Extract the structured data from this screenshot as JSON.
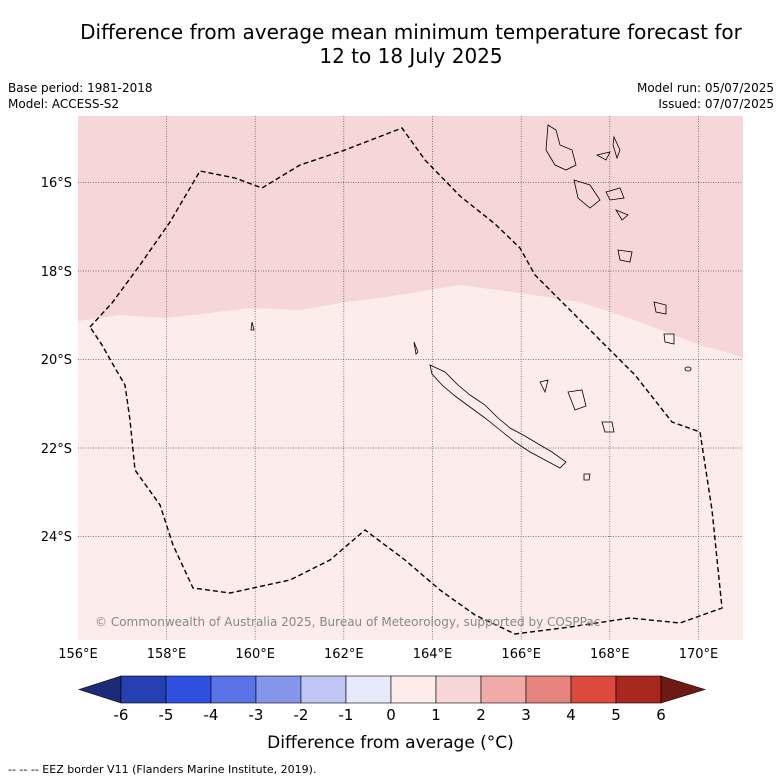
{
  "title_line1": "Difference from average mean minimum temperature forecast for",
  "title_line2": "12 to 18 July 2025",
  "base_period": "Base period: 1981-2018",
  "model": "Model: ACCESS-S2",
  "model_run": "Model run: 05/07/2025",
  "issued": "Issued: 07/07/2025",
  "copyright": "© Commonwealth of Australia 2025, Bureau of Meteorology, supported by COSPPac",
  "lat_labels": [
    "16°S",
    "18°S",
    "20°S",
    "22°S",
    "24°S"
  ],
  "lon_labels": [
    "156°E",
    "158°E",
    "160°E",
    "162°E",
    "164°E",
    "166°E",
    "168°E",
    "170°E"
  ],
  "colorbar": {
    "ticks": [
      "-6",
      "-5",
      "-4",
      "-3",
      "-2",
      "-1",
      "0",
      "1",
      "2",
      "3",
      "4",
      "5",
      "6"
    ],
    "colors": [
      "#1b2b78",
      "#2440b2",
      "#2f4fe0",
      "#5a73e6",
      "#8595ea",
      "#c0c6f4",
      "#e6e9fa",
      "#fdecea",
      "#f6d6d6",
      "#f0aaa7",
      "#e7847d",
      "#db4a3d",
      "#a8281f",
      "#6e1a14"
    ],
    "label": "Difference from average (°C)"
  },
  "footer": "--  --  -- EEZ border V11 (Flanders Marine Institute, 2019).",
  "colors": {
    "zone_0_1": "#fcecea",
    "zone_1_2": "#f6d6d6"
  }
}
